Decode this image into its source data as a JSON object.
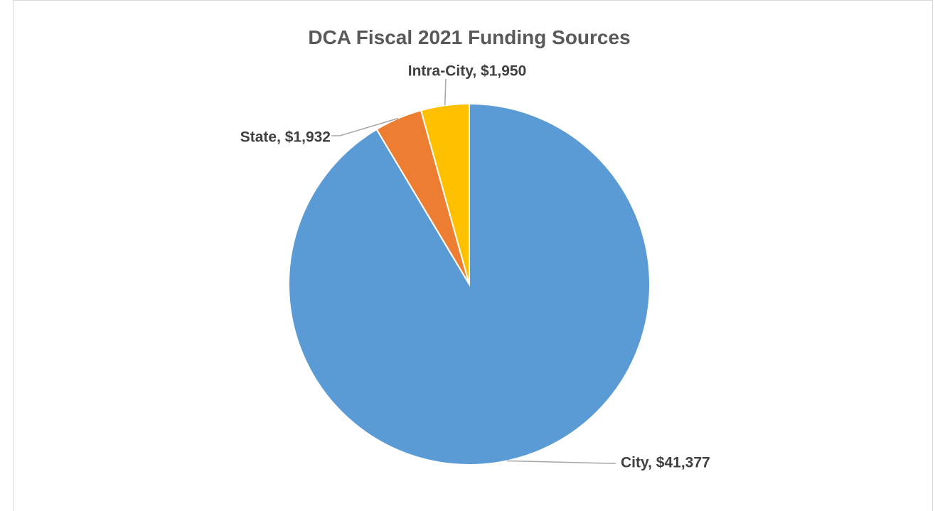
{
  "chart_data": {
    "type": "pie",
    "title": "DCA Fiscal 2021 Funding Sources",
    "slices": [
      {
        "label": "City",
        "value": 41377,
        "value_text": "$41,377",
        "color": "#5b9bd5"
      },
      {
        "label": "State",
        "value": 1932,
        "value_text": "$1,932",
        "color": "#ed7d31"
      },
      {
        "label": "Intra-City",
        "value": 1950,
        "value_text": "$1,950",
        "color": "#ffc000"
      }
    ],
    "start_angle": "12 o'clock",
    "direction": "clockwise",
    "legend": "none",
    "data_labels": "outside with leader lines"
  }
}
